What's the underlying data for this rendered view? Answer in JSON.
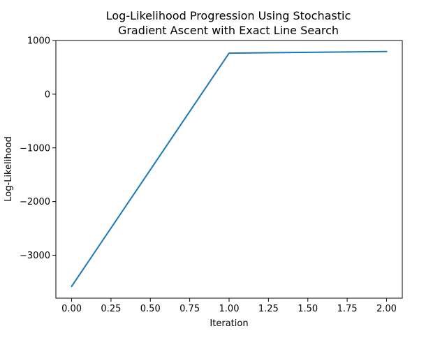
{
  "chart_data": {
    "type": "line",
    "title": [
      "Log-Likelihood Progression Using Stochastic",
      "Gradient Ascent with Exact Line Search"
    ],
    "xlabel": "Iteration",
    "ylabel": "Log-Likelihood",
    "x": [
      0,
      1,
      2
    ],
    "series": [
      {
        "values": [
          -3580,
          765,
          795
        ],
        "color": "#1f77b4"
      }
    ],
    "xlim": [
      -0.1,
      2.1
    ],
    "ylim": [
      -3800,
      1000
    ],
    "xticks": [
      0,
      0.25,
      0.5,
      0.75,
      1.0,
      1.25,
      1.5,
      1.75,
      2.0
    ],
    "xtick_labels": [
      "0.00",
      "0.25",
      "0.50",
      "0.75",
      "1.00",
      "1.25",
      "1.50",
      "1.75",
      "2.00"
    ],
    "yticks": [
      -3000,
      -2000,
      -1000,
      0,
      1000
    ],
    "ytick_labels": [
      "−3000",
      "−2000",
      "−1000",
      "0",
      "1000"
    ],
    "grid": false,
    "legend": "none"
  }
}
